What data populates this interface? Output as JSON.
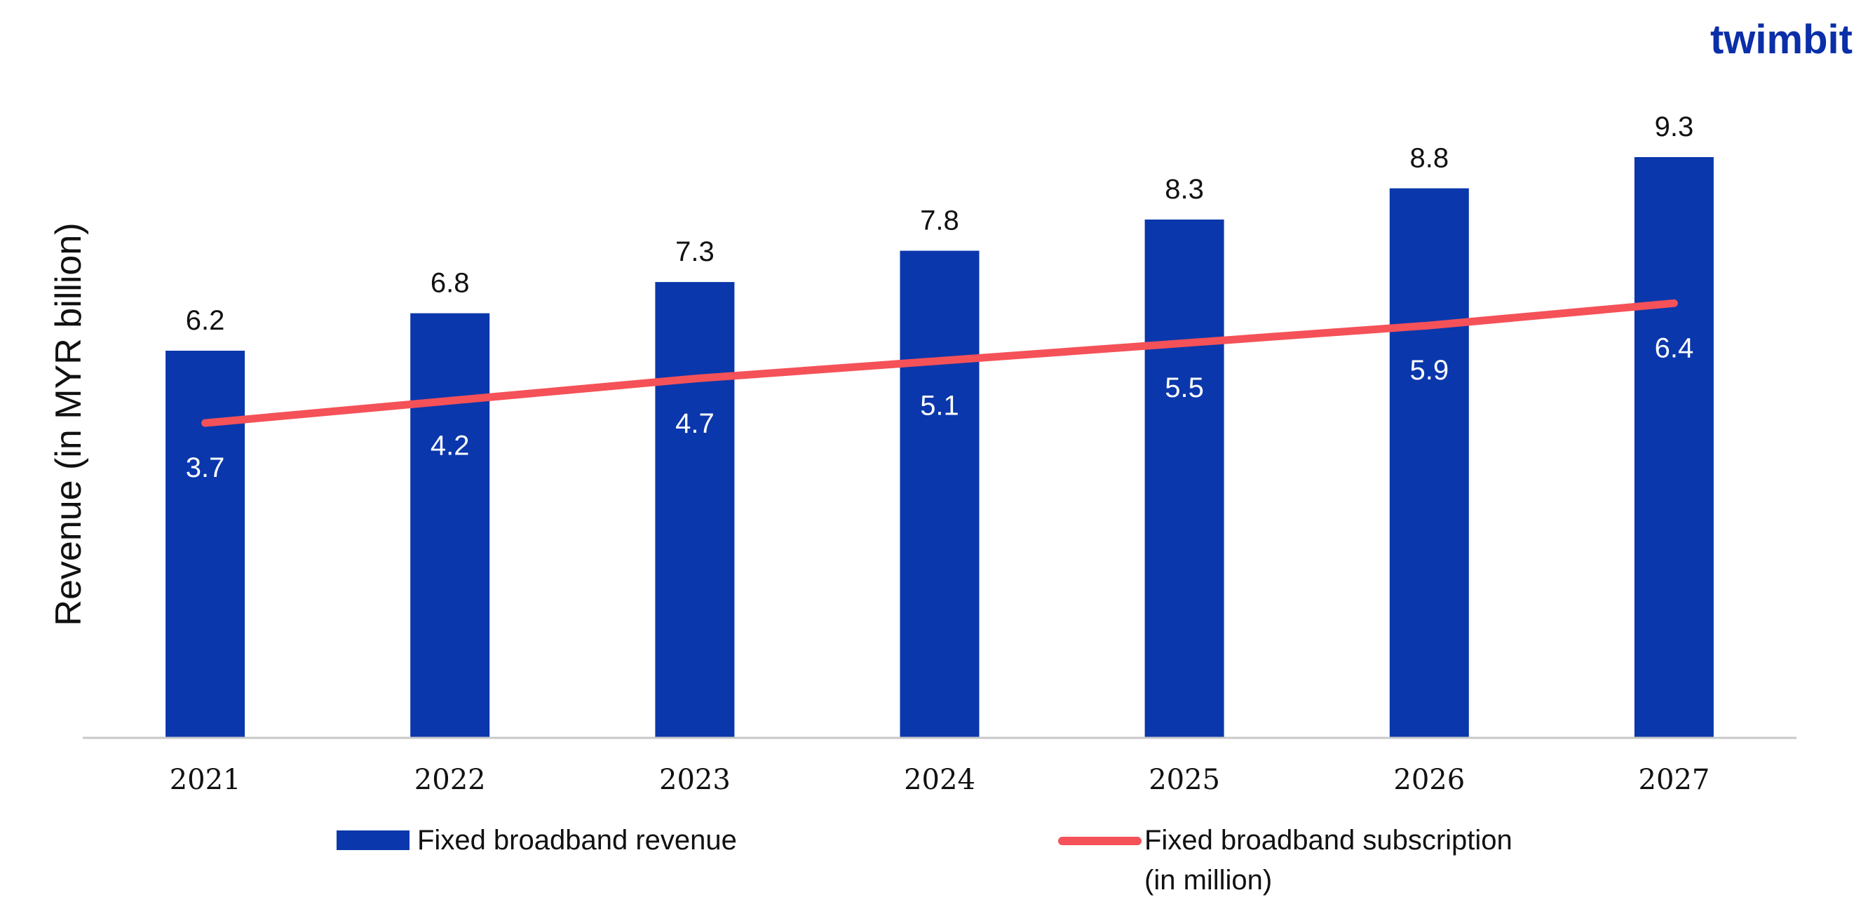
{
  "brand": {
    "logo_text": "twimbit",
    "logo_color": "#0a2fa8",
    "logo_dot_color": "#f55158"
  },
  "chart_data": {
    "type": "bar",
    "categories": [
      "2021",
      "2022",
      "2023",
      "2024",
      "2025",
      "2026",
      "2027"
    ],
    "series": [
      {
        "name": "Fixed broadband revenue",
        "type": "bar",
        "values": [
          6.2,
          6.8,
          7.3,
          7.8,
          8.3,
          8.8,
          9.3
        ],
        "labels": [
          "6.2",
          "6.8",
          "7.3",
          "7.8",
          "8.3",
          "8.8",
          "9.3"
        ],
        "color": "#0a37ab"
      },
      {
        "name": "Fixed broadband subscription (in million)",
        "name_lines": [
          "Fixed broadband subscription",
          "(in million)"
        ],
        "type": "line",
        "values": [
          3.7,
          4.2,
          4.7,
          5.1,
          5.5,
          5.9,
          6.4
        ],
        "labels": [
          "3.7",
          "4.2",
          "4.7",
          "5.1",
          "5.5",
          "5.9",
          "6.4"
        ],
        "color": "#f55158"
      }
    ],
    "ylabel": "Revenue (in MYR billion)",
    "xlabel": "",
    "title": "",
    "ylim": [
      0,
      11.5
    ],
    "line_ylim": [
      -3.4,
      9.6
    ],
    "grid": false,
    "legend": "bottom"
  }
}
